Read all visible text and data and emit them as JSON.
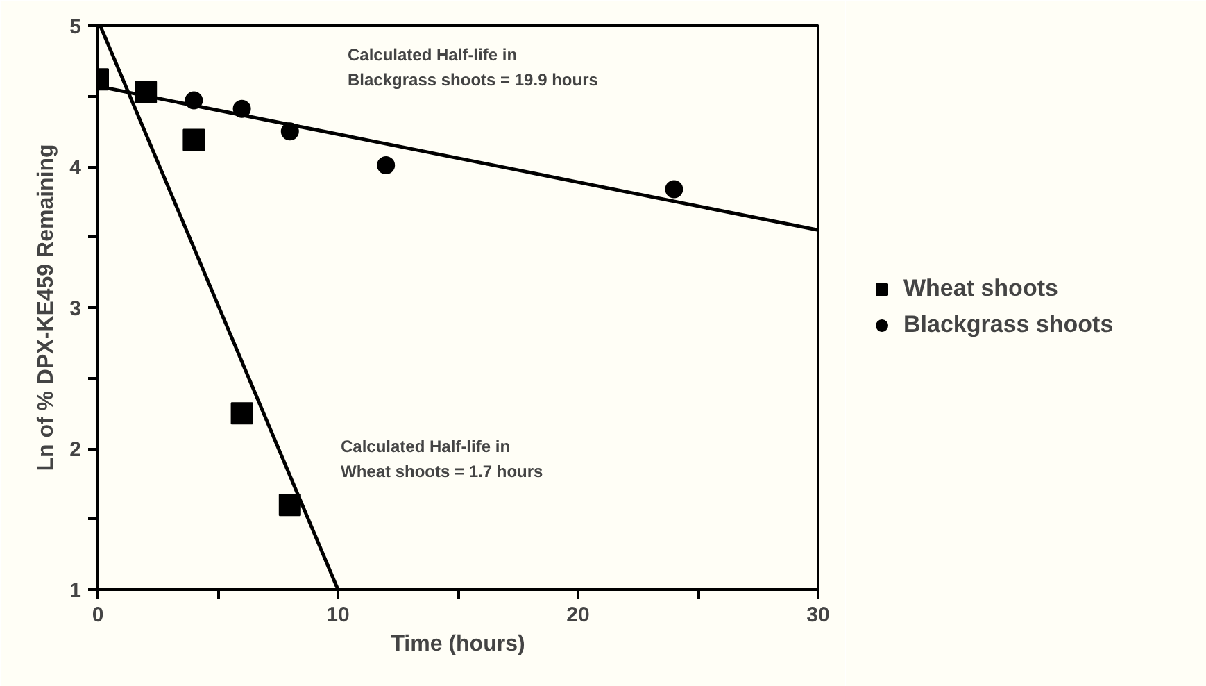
{
  "chart_data": {
    "type": "scatter",
    "xlabel": "Time (hours)",
    "ylabel": "Ln of % DPX-KE459 Remaining",
    "xlim": [
      0,
      30
    ],
    "ylim": [
      1,
      5
    ],
    "xticks": [
      0,
      {
        "value": 5,
        "label": null
      },
      10,
      {
        "value": 15,
        "label": null
      },
      20,
      {
        "value": 25,
        "label": null
      },
      30
    ],
    "yticks": [
      1,
      {
        "value": 1.5,
        "label": null
      },
      2,
      {
        "value": 2.5,
        "label": null
      },
      3,
      {
        "value": 3.5,
        "label": null
      },
      4,
      {
        "value": 4.5,
        "label": null
      },
      5
    ],
    "grid": false,
    "legend": "right",
    "series": [
      {
        "name": "Wheat shoots",
        "color": "#000000",
        "marker": "square",
        "x": [
          0,
          2,
          4,
          6,
          8
        ],
        "values": [
          4.62,
          4.53,
          4.19,
          2.25,
          1.6
        ]
      },
      {
        "name": "Blackgrass shoots",
        "color": "#000000",
        "marker": "circle",
        "x": [
          4,
          6,
          8,
          12,
          24
        ],
        "values": [
          4.47,
          4.41,
          4.25,
          4.01,
          3.84
        ]
      },
      {
        "type": "line",
        "color": "#000000",
        "x": [
          0.1,
          10
        ],
        "values": [
          5.0,
          1.0
        ]
      },
      {
        "type": "line",
        "color": "#000000",
        "x": [
          0,
          30
        ],
        "values": [
          4.57,
          3.55
        ]
      }
    ],
    "annotations": [
      "Calculated Half-life in\n        Blackgrass shoots = 19.9 hours",
      "Calculated Half-life in\n        Wheat  shoots = 1.7 hours"
    ]
  }
}
